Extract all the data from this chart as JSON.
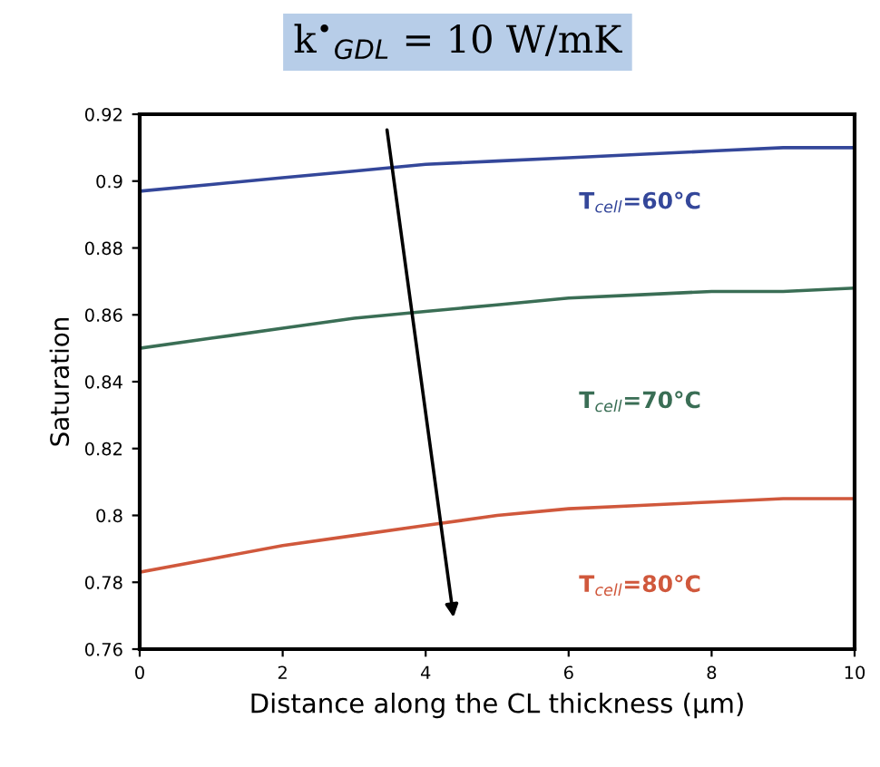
{
  "chart_data": {
    "type": "line",
    "title": "k$^{•}$$_{GDL}$ = 10 W/mK",
    "xlabel": "Distance along the CL thickness (µm)",
    "ylabel": "Saturation",
    "x": [
      0,
      1,
      2,
      3,
      4,
      5,
      6,
      7,
      8,
      9,
      10
    ],
    "series": [
      {
        "name": "T$_{cell}$=60°C",
        "color": "#34479a",
        "values": [
          0.897,
          0.899,
          0.901,
          0.903,
          0.905,
          0.906,
          0.907,
          0.908,
          0.909,
          0.91,
          0.91
        ]
      },
      {
        "name": "T$_{cell}$=70°C",
        "color": "#3a6e55",
        "values": [
          0.85,
          0.853,
          0.856,
          0.859,
          0.861,
          0.863,
          0.865,
          0.866,
          0.867,
          0.867,
          0.868
        ]
      },
      {
        "name": "T$_{cell}$=80°C",
        "color": "#d0583c",
        "values": [
          0.783,
          0.787,
          0.791,
          0.794,
          0.797,
          0.8,
          0.802,
          0.803,
          0.804,
          0.805,
          0.805
        ]
      }
    ],
    "xlim": [
      0,
      10
    ],
    "xticks": [
      0,
      2,
      4,
      6,
      8,
      10
    ],
    "ylim": [
      0.76,
      0.92
    ],
    "yticks": [
      0.76,
      0.78,
      0.8,
      0.82,
      0.84,
      0.86,
      0.88,
      0.9,
      0.92
    ],
    "grid": false,
    "legend": false,
    "marker": "none",
    "line_style": "solid"
  }
}
